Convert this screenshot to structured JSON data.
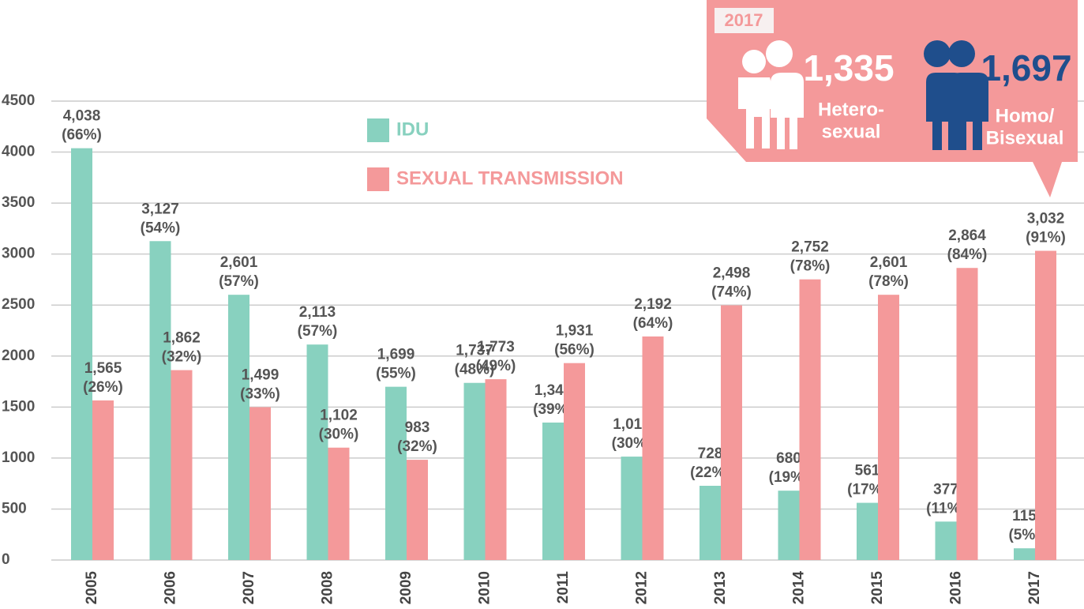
{
  "chart_data": {
    "type": "bar",
    "categories": [
      "2005",
      "2006",
      "2007",
      "2008",
      "2009",
      "2010",
      "2011",
      "2012",
      "2013",
      "2014",
      "2015",
      "2016",
      "2017"
    ],
    "series": [
      {
        "name": "IDU",
        "color": "#88d1bf",
        "values": [
          4038,
          3127,
          2601,
          2113,
          1699,
          1737,
          1348,
          1014,
          728,
          680,
          561,
          377,
          115
        ],
        "value_labels": [
          "4,038",
          "3,127",
          "2,601",
          "2,113",
          "1,699",
          "1,737",
          "1,348",
          "1,014",
          "728",
          "680",
          "561",
          "377",
          "115"
        ],
        "share_labels": [
          "(66%)",
          "(54%)",
          "(57%)",
          "(57%)",
          "(55%)",
          "(48%)",
          "(39%)",
          "(30%)",
          "(22%)",
          "(19%)",
          "(17%)",
          "(11%)",
          "(5%)"
        ]
      },
      {
        "name": "SEXUAL TRANSMISSION",
        "color": "#f4999a",
        "values": [
          1565,
          1862,
          1499,
          1102,
          983,
          1773,
          1931,
          2192,
          2498,
          2752,
          2601,
          2864,
          3032
        ],
        "value_labels": [
          "1,565",
          "1,862",
          "1,499",
          "1,102",
          "983",
          "1,773",
          "1,931",
          "2,192",
          "2,498",
          "2,752",
          "2,601",
          "2,864",
          "3,032"
        ],
        "share_labels": [
          "(26%)",
          "(32%)",
          "(33%)",
          "(30%)",
          "(32%)",
          "(49%)",
          "(56%)",
          "(64%)",
          "(74%)",
          "(78%)",
          "(78%)",
          "(84%)",
          "(91%)"
        ]
      }
    ],
    "ylim": [
      0,
      4500
    ],
    "yticks": [
      0,
      500,
      1000,
      1500,
      2000,
      2500,
      3000,
      3500,
      4000,
      4500
    ],
    "grid": true,
    "callout": {
      "year": "2017",
      "items": [
        {
          "value_label": "1,335",
          "label_lines": [
            "Hetero-",
            "sexual"
          ]
        },
        {
          "value_label": "1,697",
          "label_lines": [
            "Homo/",
            "Bisexual"
          ]
        }
      ]
    }
  }
}
